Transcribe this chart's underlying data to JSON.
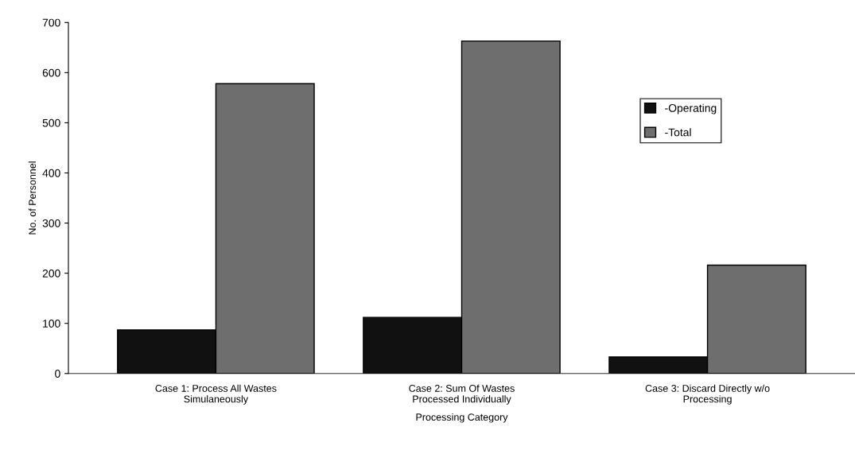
{
  "chart_data": {
    "type": "bar",
    "xlabel": "Processing Category",
    "ylabel": "No. of Personnel",
    "categories": [
      "Case 1: Process All Wastes\nSimulaneously",
      "Case 2: Sum Of Wastes\nProcessed Individually",
      "Case 3: Discard Directly w/o\nProcessing"
    ],
    "series": [
      {
        "name": "-Operating",
        "color": "#111111",
        "values": [
          87,
          112,
          33
        ]
      },
      {
        "name": "-Total",
        "color": "#6e6e6e",
        "values": [
          578,
          663,
          216
        ]
      }
    ],
    "ylim": [
      0,
      700
    ],
    "yticks": [
      0,
      100,
      200,
      300,
      400,
      500,
      600,
      700
    ],
    "grid": false,
    "legend": "right"
  }
}
